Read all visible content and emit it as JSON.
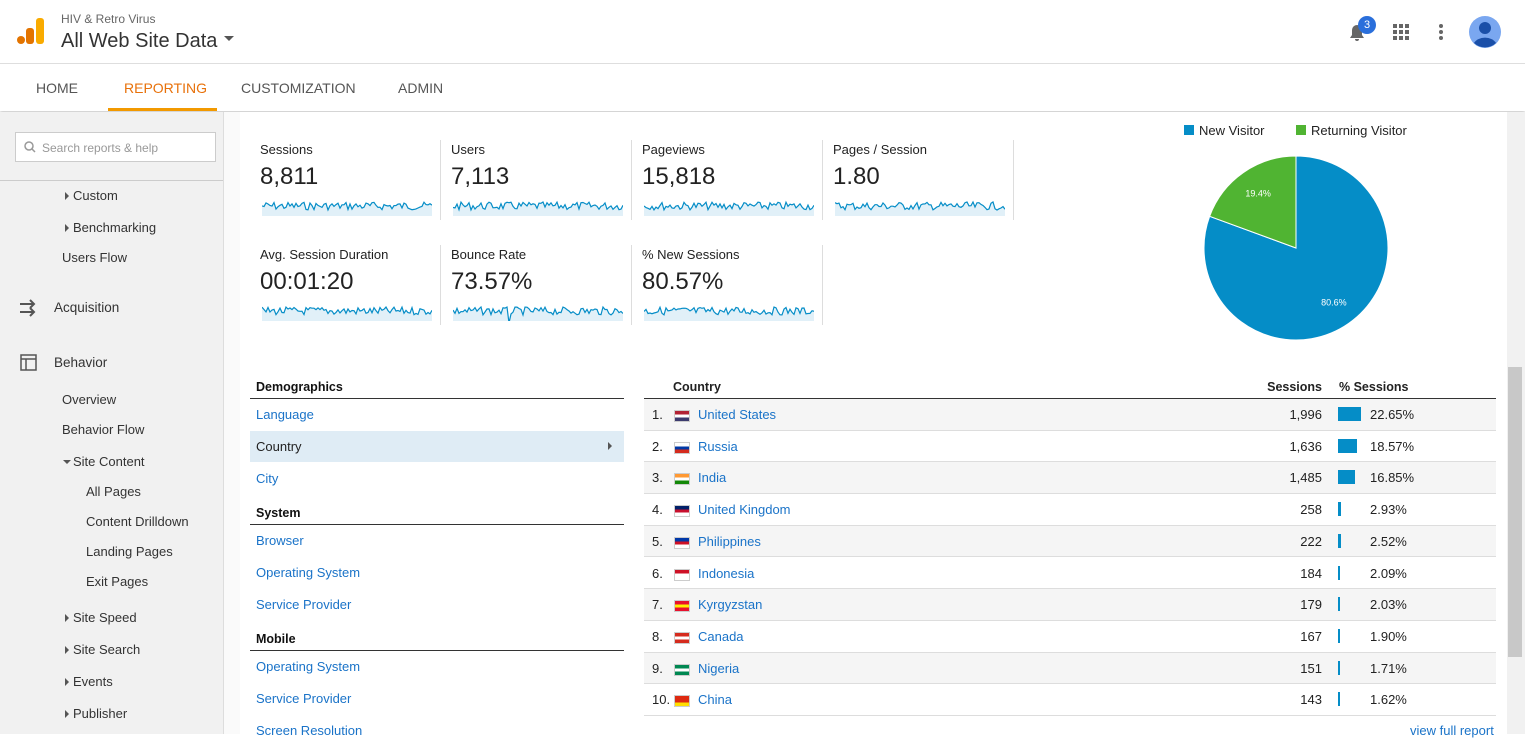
{
  "header": {
    "account": "HIV & Retro Virus",
    "property": "All Web Site Data",
    "notifications": "3"
  },
  "nav": [
    "HOME",
    "REPORTING",
    "CUSTOMIZATION",
    "ADMIN"
  ],
  "search_placeholder": "Search reports & help",
  "sidebar": [
    "Custom",
    "Benchmarking",
    "Users Flow",
    "Acquisition",
    "Behavior",
    "Overview",
    "Behavior Flow",
    "Site Content",
    "All Pages",
    "Content Drilldown",
    "Landing Pages",
    "Exit Pages",
    "Site Speed",
    "Site Search",
    "Events",
    "Publisher"
  ],
  "metrics": [
    {
      "label": "Sessions",
      "value": "8,811"
    },
    {
      "label": "Users",
      "value": "7,113"
    },
    {
      "label": "Pageviews",
      "value": "15,818"
    },
    {
      "label": "Pages / Session",
      "value": "1.80"
    },
    {
      "label": "Avg. Session Duration",
      "value": "00:01:20"
    },
    {
      "label": "Bounce Rate",
      "value": "73.57%"
    },
    {
      "label": "% New Sessions",
      "value": "80.57%"
    }
  ],
  "chart_data": {
    "type": "pie",
    "categories": [
      "New Visitor",
      "Returning Visitor"
    ],
    "values": [
      80.6,
      19.4
    ],
    "value_labels": [
      "80.6%",
      "19.4%"
    ],
    "colors": [
      "#058dc7",
      "#50b432"
    ],
    "legend": "top"
  },
  "dimensions": [
    {
      "title": "Demographics",
      "items": [
        "Language",
        "Country",
        "City"
      ]
    },
    {
      "title": "System",
      "items": [
        "Browser",
        "Operating System",
        "Service Provider"
      ]
    },
    {
      "title": "Mobile",
      "items": [
        "Operating System",
        "Service Provider",
        "Screen Resolution"
      ]
    }
  ],
  "table": {
    "headers": [
      "Country",
      "Sessions",
      "% Sessions"
    ],
    "rows": [
      {
        "rank": "1.",
        "country": "United States",
        "sessions": "1,996",
        "pct": {
          "value": 22.65,
          "label": "22.65%"
        }
      },
      {
        "rank": "2.",
        "country": "Russia",
        "sessions": "1,636",
        "pct": {
          "value": 18.57,
          "label": "18.57%"
        }
      },
      {
        "rank": "3.",
        "country": "India",
        "sessions": "1,485",
        "pct": {
          "value": 16.85,
          "label": "16.85%"
        }
      },
      {
        "rank": "4.",
        "country": "United Kingdom",
        "sessions": "258",
        "pct": {
          "value": 2.93,
          "label": "2.93%"
        }
      },
      {
        "rank": "5.",
        "country": "Philippines",
        "sessions": "222",
        "pct": {
          "value": 2.52,
          "label": "2.52%"
        }
      },
      {
        "rank": "6.",
        "country": "Indonesia",
        "sessions": "184",
        "pct": {
          "value": 2.09,
          "label": "2.09%"
        }
      },
      {
        "rank": "7.",
        "country": "Kyrgyzstan",
        "sessions": "179",
        "pct": {
          "value": 2.03,
          "label": "2.03%"
        }
      },
      {
        "rank": "8.",
        "country": "Canada",
        "sessions": "167",
        "pct": {
          "value": 1.9,
          "label": "1.90%"
        }
      },
      {
        "rank": "9.",
        "country": "Nigeria",
        "sessions": "151",
        "pct": {
          "value": 1.71,
          "label": "1.71%"
        }
      },
      {
        "rank": "10.",
        "country": "China",
        "sessions": "143",
        "pct": {
          "value": 1.62,
          "label": "1.62%"
        }
      }
    ],
    "footer_link": "view full report"
  }
}
